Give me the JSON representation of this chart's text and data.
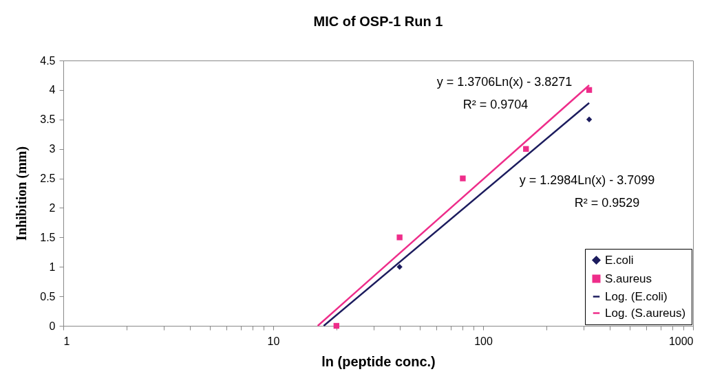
{
  "chart_data": {
    "type": "scatter",
    "title": "MIC of OSP-1 Run 1",
    "xlabel": "ln (peptide conc.)",
    "ylabel": "Inhibition (mm)",
    "log": "x",
    "xlim": [
      1,
      1000
    ],
    "ylim": [
      0,
      4.5
    ],
    "xticks": [
      1,
      {
        "value": 2,
        "label": null
      },
      {
        "value": 3,
        "label": null
      },
      {
        "value": 4,
        "label": null
      },
      {
        "value": 5,
        "label": null
      },
      {
        "value": 6,
        "label": null
      },
      {
        "value": 7,
        "label": null
      },
      {
        "value": 8,
        "label": null
      },
      {
        "value": 9,
        "label": null
      },
      10,
      {
        "value": 20,
        "label": null
      },
      {
        "value": 30,
        "label": null
      },
      {
        "value": 40,
        "label": null
      },
      {
        "value": 50,
        "label": null
      },
      {
        "value": 60,
        "label": null
      },
      {
        "value": 70,
        "label": null
      },
      {
        "value": 80,
        "label": null
      },
      {
        "value": 90,
        "label": null
      },
      100,
      {
        "value": 200,
        "label": null
      },
      {
        "value": 300,
        "label": null
      },
      {
        "value": 400,
        "label": null
      },
      {
        "value": 500,
        "label": null
      },
      {
        "value": 600,
        "label": null
      },
      {
        "value": 700,
        "label": null
      },
      {
        "value": 800,
        "label": null
      },
      {
        "value": 900,
        "label": null
      },
      1000
    ],
    "yticks": [
      0,
      0.5,
      1,
      1.5,
      2,
      2.5,
      3,
      3.5,
      4,
      4.5
    ],
    "legend": "bottom right",
    "series": [
      {
        "name": "E.coli",
        "marker": "diamond",
        "color": "#1c1c5e",
        "x": [
          40,
          320
        ],
        "values": [
          1,
          3.5
        ]
      },
      {
        "name": "S.aureus",
        "marker": "square",
        "color": "#ee2d8a",
        "x": [
          20,
          40,
          80,
          160,
          320
        ],
        "values": [
          0,
          1.5,
          2.5,
          3,
          4
        ]
      },
      {
        "name": "Log. (E.coli)",
        "type": "line",
        "color": "#1c1c5e",
        "x": [
          17.4,
          320
        ],
        "values": [
          0,
          3.78
        ]
      },
      {
        "name": "Log. (S.aureus)",
        "type": "line",
        "color": "#ee2d8a",
        "x": [
          16.3,
          320
        ],
        "values": [
          0,
          4.08
        ]
      }
    ],
    "annotations": [
      "y = 1.3706Ln(x) - 3.8271",
      "R² = 0.9704",
      "y = 1.2984Ln(x) - 3.7099",
      "R² = 0.9529"
    ]
  }
}
